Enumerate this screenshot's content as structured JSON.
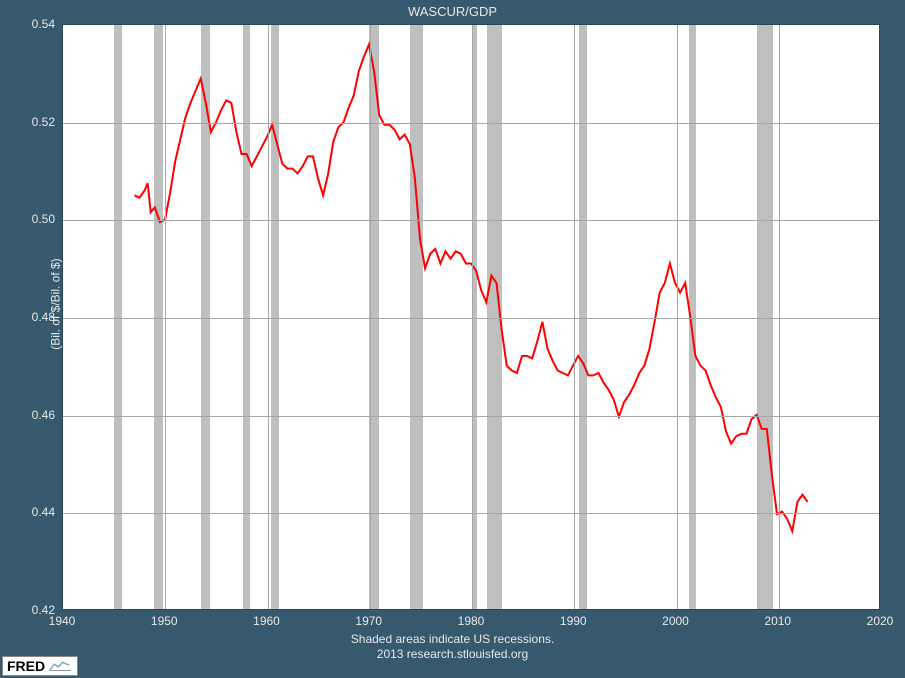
{
  "title": "WASCUR/GDP",
  "ylabel": "(Bil. of $/Bil. of $)",
  "subcaption_line1": "Shaded areas indicate US recessions.",
  "subcaption_line2": "2013 research.stlouisfed.org",
  "logo_text": "FRED",
  "chart": {
    "type": "line",
    "background_color": "#ffffff",
    "frame_background": "#36596e",
    "grid_color": "#a6a6a6",
    "recession_color": "#bfbfbf",
    "line_color": "#ff0000",
    "line_width": 2,
    "text_color": "#e8e8e8",
    "tick_fontsize": 12,
    "title_fontsize": 13,
    "xlim": [
      1940,
      2020
    ],
    "ylim": [
      0.42,
      0.54
    ],
    "xticks": [
      1940,
      1950,
      1960,
      1970,
      1980,
      1990,
      2000,
      2010,
      2020
    ],
    "yticks": [
      0.42,
      0.44,
      0.46,
      0.48,
      0.5,
      0.52,
      0.54
    ],
    "recessions": [
      [
        1945.0,
        1945.8
      ],
      [
        1948.9,
        1949.8
      ],
      [
        1953.5,
        1954.4
      ],
      [
        1957.6,
        1958.3
      ],
      [
        1960.3,
        1961.1
      ],
      [
        1969.9,
        1970.9
      ],
      [
        1973.9,
        1975.2
      ],
      [
        1980.0,
        1980.5
      ],
      [
        1981.5,
        1982.9
      ],
      [
        1990.5,
        1991.2
      ],
      [
        2001.2,
        2001.9
      ],
      [
        2007.9,
        2009.4
      ]
    ],
    "series": {
      "x": [
        1947.0,
        1947.5,
        1948.0,
        1948.3,
        1948.6,
        1949.0,
        1949.5,
        1950.0,
        1950.5,
        1951.0,
        1951.5,
        1952.0,
        1952.5,
        1953.0,
        1953.5,
        1954.0,
        1954.5,
        1955.0,
        1955.5,
        1956.0,
        1956.5,
        1957.0,
        1957.5,
        1958.0,
        1958.5,
        1959.0,
        1959.5,
        1960.0,
        1960.5,
        1961.0,
        1961.5,
        1962.0,
        1962.5,
        1963.0,
        1963.5,
        1964.0,
        1964.5,
        1965.0,
        1965.5,
        1966.0,
        1966.5,
        1967.0,
        1967.5,
        1968.0,
        1968.5,
        1969.0,
        1969.5,
        1970.0,
        1970.5,
        1971.0,
        1971.5,
        1972.0,
        1972.5,
        1973.0,
        1973.5,
        1974.0,
        1974.5,
        1975.0,
        1975.5,
        1976.0,
        1976.5,
        1977.0,
        1977.5,
        1978.0,
        1978.5,
        1979.0,
        1979.5,
        1980.0,
        1980.5,
        1981.0,
        1981.5,
        1982.0,
        1982.5,
        1983.0,
        1983.5,
        1984.0,
        1984.5,
        1985.0,
        1985.5,
        1986.0,
        1986.5,
        1987.0,
        1987.5,
        1988.0,
        1988.5,
        1989.0,
        1989.5,
        1990.0,
        1990.5,
        1991.0,
        1991.5,
        1992.0,
        1992.5,
        1993.0,
        1993.5,
        1994.0,
        1994.5,
        1995.0,
        1995.5,
        1996.0,
        1996.5,
        1997.0,
        1997.5,
        1998.0,
        1998.5,
        1999.0,
        1999.5,
        2000.0,
        2000.5,
        2001.0,
        2001.5,
        2002.0,
        2002.5,
        2003.0,
        2003.5,
        2004.0,
        2004.5,
        2005.0,
        2005.5,
        2006.0,
        2006.5,
        2007.0,
        2007.5,
        2008.0,
        2008.5,
        2009.0,
        2009.5,
        2010.0,
        2010.5,
        2011.0,
        2011.5,
        2012.0,
        2012.5,
        2013.0
      ],
      "y": [
        0.505,
        0.5045,
        0.506,
        0.5075,
        0.5015,
        0.5025,
        0.4995,
        0.5,
        0.5055,
        0.512,
        0.5165,
        0.521,
        0.524,
        0.5265,
        0.529,
        0.524,
        0.518,
        0.52,
        0.5225,
        0.5245,
        0.524,
        0.518,
        0.5135,
        0.5135,
        0.511,
        0.513,
        0.515,
        0.517,
        0.5195,
        0.5155,
        0.5115,
        0.5105,
        0.5105,
        0.5095,
        0.511,
        0.513,
        0.513,
        0.5085,
        0.505,
        0.5095,
        0.516,
        0.519,
        0.52,
        0.523,
        0.5255,
        0.5305,
        0.5335,
        0.536,
        0.5305,
        0.5215,
        0.5195,
        0.5195,
        0.5185,
        0.5165,
        0.5175,
        0.5155,
        0.5085,
        0.496,
        0.49,
        0.493,
        0.494,
        0.491,
        0.4935,
        0.492,
        0.4935,
        0.493,
        0.491,
        0.491,
        0.4895,
        0.4855,
        0.483,
        0.4885,
        0.487,
        0.4775,
        0.47,
        0.469,
        0.4685,
        0.472,
        0.472,
        0.4715,
        0.475,
        0.479,
        0.4735,
        0.471,
        0.469,
        0.4685,
        0.468,
        0.47,
        0.472,
        0.4705,
        0.468,
        0.468,
        0.4685,
        0.4665,
        0.465,
        0.463,
        0.4595,
        0.4625,
        0.464,
        0.466,
        0.4685,
        0.47,
        0.4735,
        0.479,
        0.485,
        0.487,
        0.491,
        0.487,
        0.485,
        0.487,
        0.48,
        0.472,
        0.47,
        0.469,
        0.466,
        0.4635,
        0.4615,
        0.4565,
        0.454,
        0.4555,
        0.456,
        0.456,
        0.459,
        0.4599,
        0.457,
        0.457,
        0.4475,
        0.4395,
        0.44,
        0.4385,
        0.436,
        0.442,
        0.4435,
        0.442
      ]
    }
  }
}
